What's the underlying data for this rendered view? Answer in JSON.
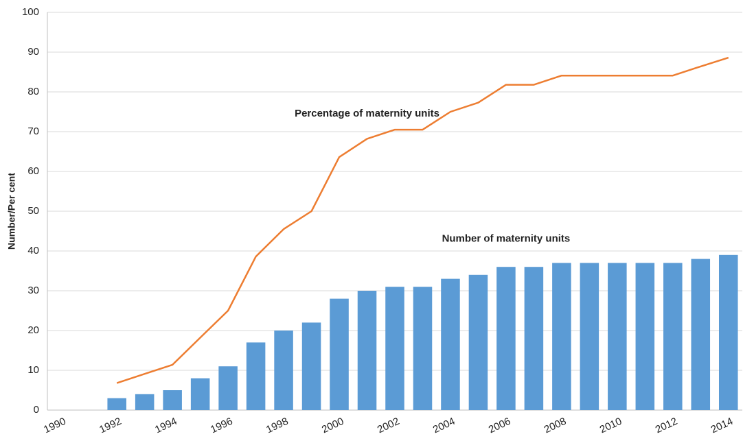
{
  "chart_data": {
    "type": "bar",
    "y_label": "Number/Per cent",
    "categories": [
      "1990",
      null,
      "1992",
      null,
      "1994",
      null,
      "1996",
      null,
      "1998",
      null,
      "2000",
      null,
      "2002",
      null,
      "2004",
      null,
      "2006",
      null,
      "2008",
      null,
      "2010",
      null,
      "2012",
      null,
      "2014"
    ],
    "series": [
      {
        "name": "Number of maternity units",
        "type": "bar",
        "color": "#5b9bd5",
        "values": [
          null,
          null,
          3,
          4,
          5,
          8,
          11,
          17,
          20,
          22,
          28,
          30,
          31,
          31,
          33,
          34,
          36,
          36,
          37,
          37,
          37,
          37,
          37,
          38,
          39
        ]
      },
      {
        "name": "Percentage of maternity units",
        "type": "line",
        "color": "#ed7d31",
        "values": [
          null,
          null,
          6.8,
          9.1,
          11.4,
          18.2,
          25,
          38.6,
          45.5,
          50,
          63.6,
          68.2,
          70.5,
          70.5,
          75,
          77.3,
          81.8,
          81.8,
          84.1,
          84.1,
          84.1,
          84.1,
          84.1,
          86.4,
          88.6
        ]
      }
    ],
    "ylim": [
      0,
      100
    ],
    "yticks": [
      0,
      10,
      20,
      30,
      40,
      50,
      60,
      70,
      80,
      90,
      100
    ],
    "grid": true
  }
}
